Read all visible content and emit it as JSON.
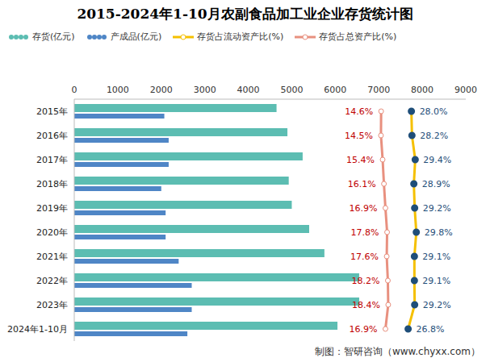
{
  "chart_data": {
    "type": "bar",
    "orientation": "horizontal",
    "title": "2015-2024年1-10月农副食品加工业企业存货统计图",
    "source": "制图：智研咨询（www.chyxx.com）",
    "categories": [
      "2015年",
      "2016年",
      "2017年",
      "2018年",
      "2019年",
      "2020年",
      "2021年",
      "2022年",
      "2023年",
      "2024年1-10月"
    ],
    "xlim": [
      0,
      9000
    ],
    "xticks": [
      0,
      1000,
      2000,
      3000,
      4000,
      5000,
      6000,
      7000,
      8000,
      9000
    ],
    "grid": false,
    "legend": "top",
    "series": [
      {
        "name": "存货(亿元)",
        "type": "bar",
        "color": "#5cbdb2",
        "values": [
          4650,
          4900,
          5250,
          4930,
          5000,
          5400,
          5750,
          6550,
          6550,
          6050
        ]
      },
      {
        "name": "产成品(亿元)",
        "type": "bar",
        "color": "#4f86c6",
        "values": [
          2070,
          2170,
          2170,
          2000,
          2100,
          2100,
          2400,
          2700,
          2700,
          2600
        ]
      },
      {
        "name": "存货占流动资产比(%)",
        "type": "line",
        "color": "#f5c000",
        "marker": "circle",
        "data_labels": true,
        "xlim": [
          -96,
          48
        ],
        "values": [
          28.0,
          28.2,
          29.4,
          28.9,
          29.2,
          29.8,
          29.1,
          29.1,
          29.2,
          26.8
        ],
        "value_labels": [
          "28.0%",
          "28.2%",
          "29.4%",
          "28.9%",
          "29.2%",
          "29.8%",
          "29.1%",
          "29.1%",
          "29.2%",
          "26.8%"
        ]
      },
      {
        "name": "存货占总资产比(%)",
        "type": "line",
        "color": "#e8907f",
        "marker": "circle",
        "data_labels": true,
        "xlim": [
          -150,
          60
        ],
        "values": [
          14.6,
          14.5,
          15.4,
          16.1,
          16.9,
          17.8,
          17.6,
          18.2,
          18.4,
          16.9
        ],
        "value_labels": [
          "14.6%",
          "14.5%",
          "15.4%",
          "16.1%",
          "16.9%",
          "17.8%",
          "17.6%",
          "18.2%",
          "18.4%",
          "16.9%"
        ]
      }
    ]
  }
}
